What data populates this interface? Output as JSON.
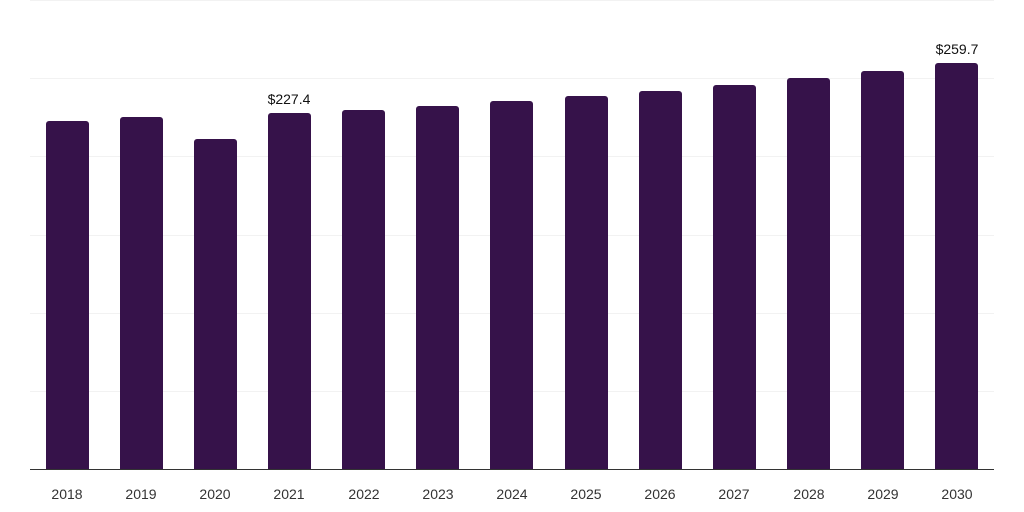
{
  "chart_data": {
    "type": "bar",
    "title": "",
    "xlabel": "",
    "ylabel": "",
    "ylim": [
      0,
      300
    ],
    "grid": true,
    "gridline_values": [
      0,
      50,
      100,
      150,
      200,
      250,
      300
    ],
    "y_tick_labels_visible": false,
    "legend": null,
    "categories": [
      "2018",
      "2019",
      "2020",
      "2021",
      "2022",
      "2023",
      "2024",
      "2025",
      "2026",
      "2027",
      "2028",
      "2029",
      "2030"
    ],
    "values": [
      222.5,
      225.1,
      211.0,
      227.4,
      229.4,
      232.0,
      235.2,
      238.4,
      241.6,
      245.5,
      250.0,
      254.5,
      259.7
    ],
    "annotations": [
      {
        "category": "2021",
        "label": "$227.4"
      },
      {
        "category": "2030",
        "label": "$259.7"
      }
    ],
    "bar_color": "#36124a"
  }
}
